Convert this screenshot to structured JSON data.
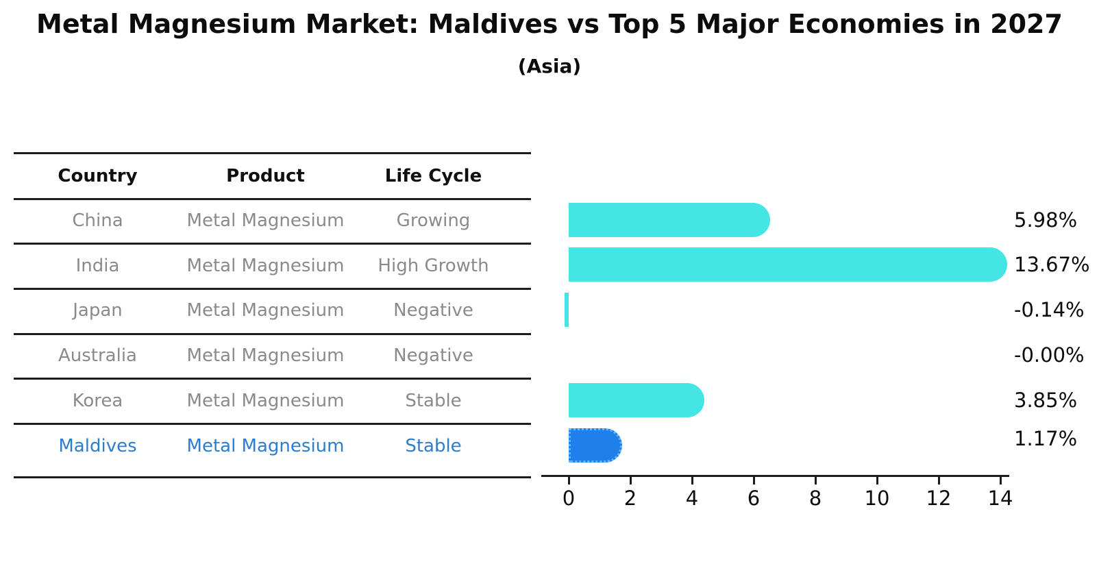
{
  "page": {
    "title": "Metal Magnesium Market: Maldives vs Top 5 Major Economies in 2027",
    "subtitle": "(Asia)"
  },
  "table": {
    "columns": [
      "Country",
      "Product",
      "Life Cycle"
    ],
    "rows": [
      {
        "country": "China",
        "product": "Metal Magnesium",
        "life_cycle": "Growing",
        "highlighted": false
      },
      {
        "country": "India",
        "product": "Metal Magnesium",
        "life_cycle": "High Growth",
        "highlighted": false
      },
      {
        "country": "Japan",
        "product": "Metal Magnesium",
        "life_cycle": "Negative",
        "highlighted": false
      },
      {
        "country": "Australia",
        "product": "Metal Magnesium",
        "life_cycle": "Negative",
        "highlighted": false
      },
      {
        "country": "Korea",
        "product": "Metal Magnesium",
        "life_cycle": "Stable",
        "highlighted": false
      },
      {
        "country": "Maldives",
        "product": "Metal Magnesium",
        "life_cycle": "Stable",
        "highlighted": true
      }
    ]
  },
  "chart_data": {
    "type": "bar",
    "orientation": "horizontal",
    "title": "Metal Magnesium Market: Maldives vs Top 5 Major Economies in 2027",
    "subtitle": "(Asia)",
    "categories": [
      "China",
      "India",
      "Japan",
      "Australia",
      "Korea",
      "Maldives"
    ],
    "values": [
      5.98,
      13.67,
      -0.14,
      -0.0,
      3.85,
      1.17
    ],
    "value_labels": [
      "5.98%",
      "13.67%",
      "-0.14%",
      "-0.00%",
      "3.85%",
      "1.17%"
    ],
    "x_ticks": [
      0,
      2,
      4,
      6,
      8,
      10,
      12,
      14
    ],
    "xlim": [
      0,
      14
    ],
    "highlight_category": "Maldives",
    "bar_color": "#45e5e6",
    "highlight_bar_color": "#1f80ec",
    "highlight_bar_edge": "#6ab4f7",
    "grid": false,
    "legend": false
  },
  "colors": {
    "bar_cyan": "#45e5e6",
    "bar_blue": "#1f80ec",
    "bar_blue_edge": "#6ab4f7",
    "highlight_text": "#2e7dca",
    "row_text": "#8a8a8a",
    "header_text": "#0f0f0f",
    "line": "#1c1c1c"
  }
}
